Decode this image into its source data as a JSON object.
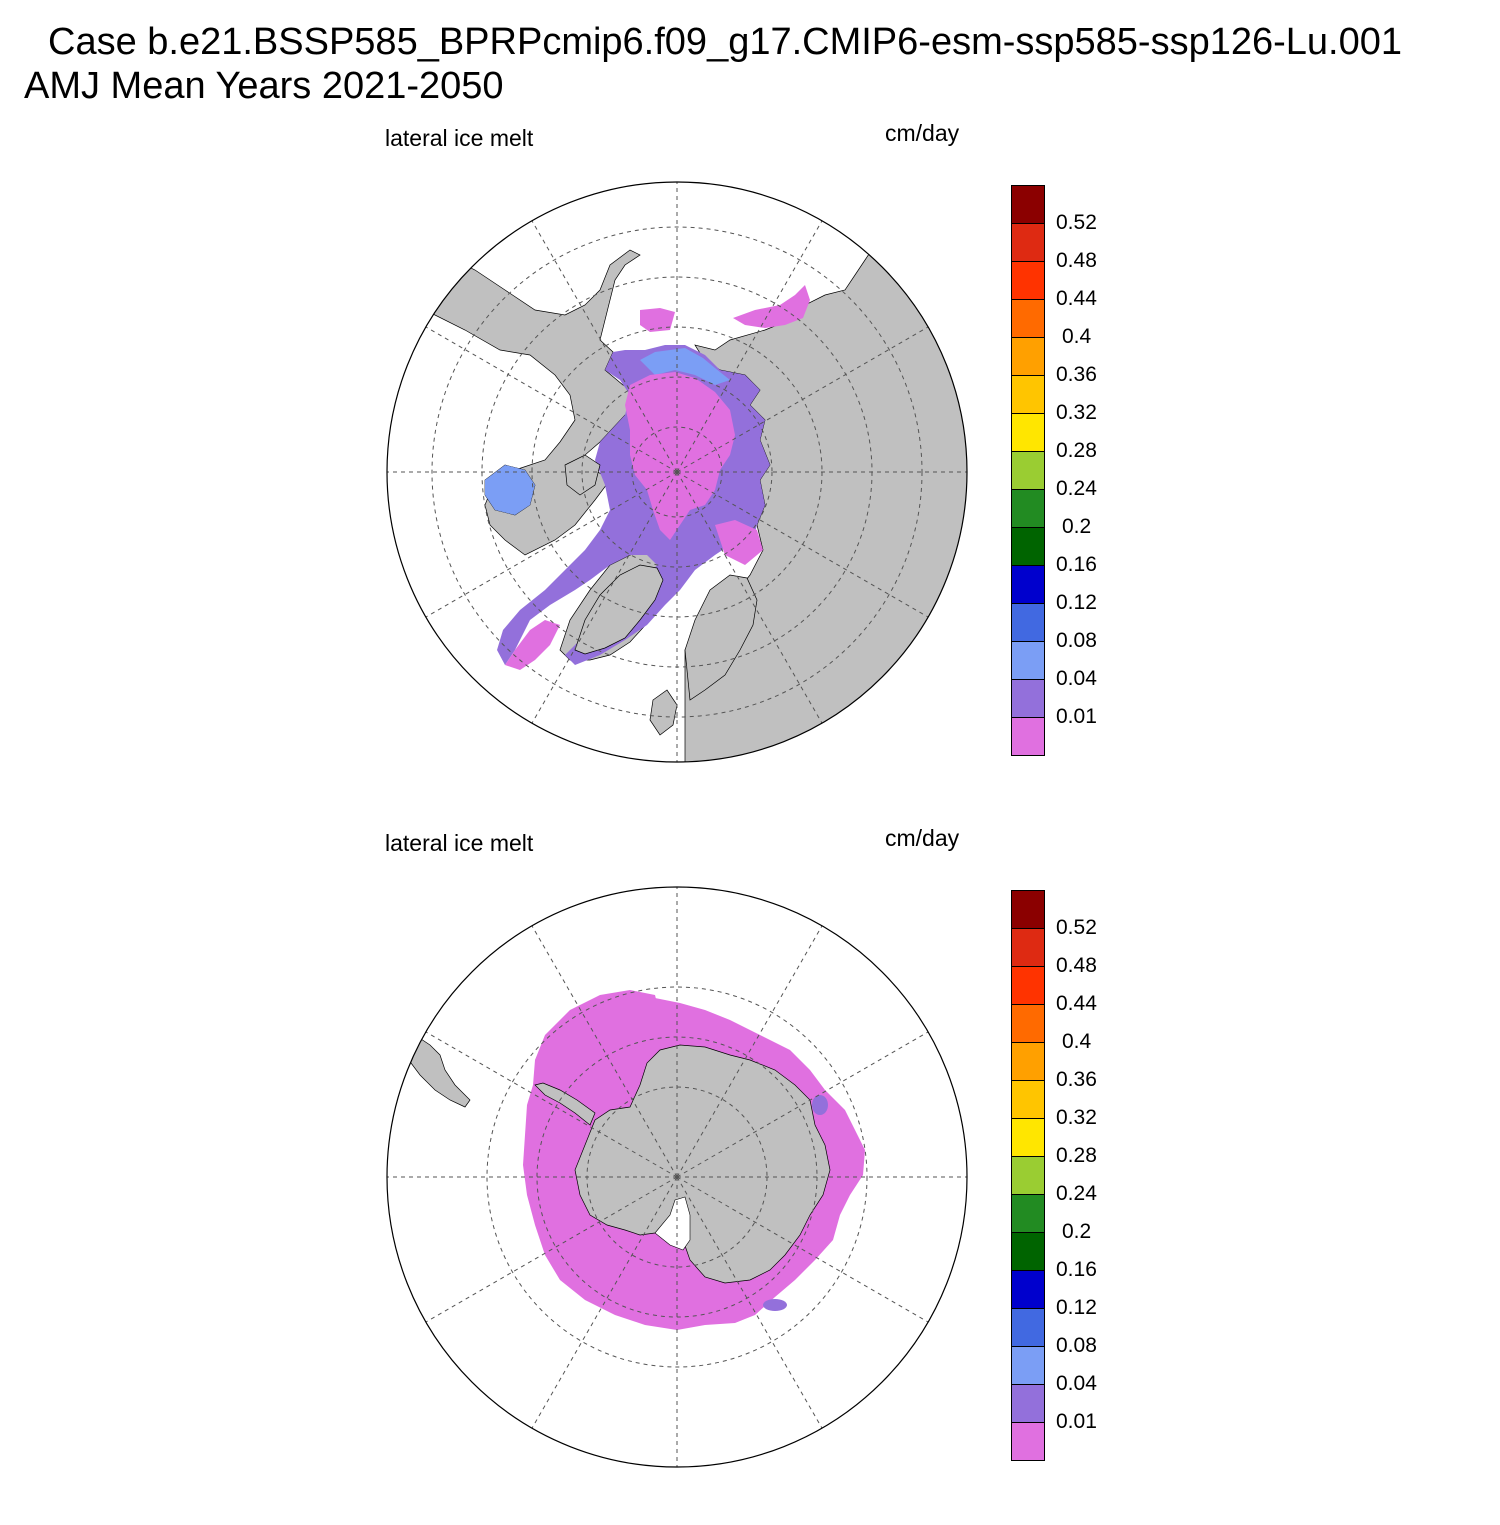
{
  "title": {
    "line1": "Case b.e21.BSSP585_BPRPcmip6.f09_g17.CMIP6-esm-ssp585-ssp126-Lu.001",
    "line2": "AMJ Mean   Years 2021-2050"
  },
  "panels": [
    {
      "id": "north",
      "variable_label": "lateral ice melt",
      "unit_label": "cm/day",
      "hemisphere": "north"
    },
    {
      "id": "south",
      "variable_label": "lateral ice melt",
      "unit_label": "cm/day",
      "hemisphere": "south"
    }
  ],
  "colorbar": {
    "levels": [
      "0.01",
      "0.04",
      "0.08",
      "0.12",
      "0.16",
      "0.2",
      "0.24",
      "0.28",
      "0.32",
      "0.36",
      "0.4",
      "0.44",
      "0.48",
      "0.52"
    ],
    "colors": [
      "#e070e0",
      "#9370db",
      "#7b9ef5",
      "#4169e1",
      "#0000cd",
      "#006400",
      "#228b22",
      "#9acd32",
      "#ffe600",
      "#ffc500",
      "#ffa000",
      "#ff6a00",
      "#ff3300",
      "#de2a12",
      "#8b0000"
    ]
  },
  "colors": {
    "land": "#c0c0c0",
    "ocean": "#ffffff",
    "grid": "#555555"
  }
}
